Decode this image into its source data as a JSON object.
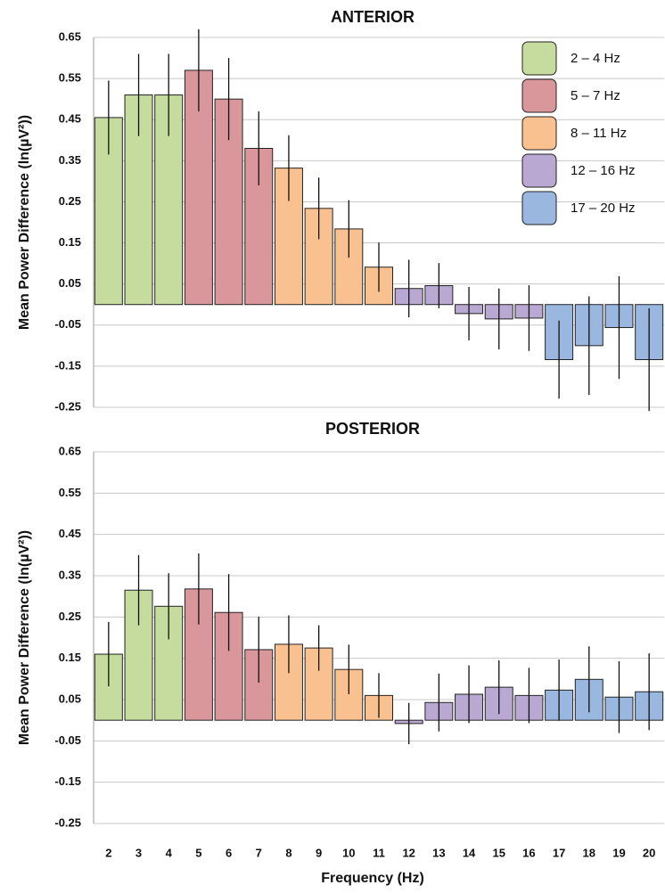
{
  "chart_data": [
    {
      "type": "bar",
      "title": "ANTERIOR",
      "y_label": "Mean Power Difference (ln(µV²))",
      "categories": [
        "2",
        "3",
        "4",
        "5",
        "6",
        "7",
        "8",
        "9",
        "10",
        "11",
        "12",
        "13",
        "14",
        "15",
        "16",
        "17",
        "18",
        "19",
        "20"
      ],
      "ylim": [
        -0.25,
        0.65
      ],
      "yticks": [
        0.65,
        0.55,
        0.45,
        0.35,
        0.25,
        0.15,
        0.05,
        -0.05,
        -0.15,
        -0.25
      ],
      "grid": true,
      "legend": "top-right",
      "series": [
        {
          "name": "2 – 4 Hz",
          "color": "#c6dc9f",
          "values": [
            0.455,
            0.51,
            0.51,
            null,
            null,
            null,
            null,
            null,
            null,
            null,
            null,
            null,
            null,
            null,
            null,
            null,
            null,
            null,
            null
          ],
          "errors": [
            0.09,
            0.1,
            0.1,
            null,
            null,
            null,
            null,
            null,
            null,
            null,
            null,
            null,
            null,
            null,
            null,
            null,
            null,
            null,
            null
          ]
        },
        {
          "name": "5 – 7 Hz",
          "color": "#d9969b",
          "values": [
            null,
            null,
            null,
            0.57,
            0.5,
            0.38,
            null,
            null,
            null,
            null,
            null,
            null,
            null,
            null,
            null,
            null,
            null,
            null,
            null
          ],
          "errors": [
            null,
            null,
            null,
            0.1,
            0.1,
            0.09,
            null,
            null,
            null,
            null,
            null,
            null,
            null,
            null,
            null,
            null,
            null,
            null,
            null
          ]
        },
        {
          "name": "8 – 11 Hz",
          "color": "#f9c190",
          "values": [
            null,
            null,
            null,
            null,
            null,
            null,
            0.332,
            0.234,
            0.184,
            0.091,
            null,
            null,
            null,
            null,
            null,
            null,
            null,
            null,
            null
          ],
          "errors": [
            null,
            null,
            null,
            null,
            null,
            null,
            0.08,
            0.075,
            0.07,
            0.06,
            null,
            null,
            null,
            null,
            null,
            null,
            null,
            null,
            null
          ]
        },
        {
          "name": "12 – 16 Hz",
          "color": "#b9a8d2",
          "values": [
            null,
            null,
            null,
            null,
            null,
            null,
            null,
            null,
            null,
            null,
            0.039,
            0.046,
            -0.022,
            -0.035,
            -0.033,
            null,
            null,
            null,
            null
          ],
          "errors": [
            null,
            null,
            null,
            null,
            null,
            null,
            null,
            null,
            null,
            null,
            0.07,
            0.055,
            0.065,
            0.074,
            0.08,
            null,
            null,
            null,
            null
          ]
        },
        {
          "name": "17 – 20 Hz",
          "color": "#99b7df",
          "values": [
            null,
            null,
            null,
            null,
            null,
            null,
            null,
            null,
            null,
            null,
            null,
            null,
            null,
            null,
            null,
            -0.134,
            -0.1,
            -0.056,
            -0.134
          ],
          "errors": [
            null,
            null,
            null,
            null,
            null,
            null,
            null,
            null,
            null,
            null,
            null,
            null,
            null,
            null,
            null,
            0.095,
            0.12,
            0.125,
            0.125
          ]
        }
      ]
    },
    {
      "type": "bar",
      "title": "POSTERIOR",
      "y_label": "Mean Power Difference (ln(µV²))",
      "x_label": "Frequency (Hz)",
      "categories": [
        "2",
        "3",
        "4",
        "5",
        "6",
        "7",
        "8",
        "9",
        "10",
        "11",
        "12",
        "13",
        "14",
        "15",
        "16",
        "17",
        "18",
        "19",
        "20"
      ],
      "ylim": [
        -0.25,
        0.65
      ],
      "yticks": [
        0.65,
        0.55,
        0.45,
        0.35,
        0.25,
        0.15,
        0.05,
        -0.05,
        -0.15,
        -0.25
      ],
      "grid": true,
      "series": [
        {
          "color": "#c6dc9f",
          "values": [
            0.16,
            0.315,
            0.276,
            null,
            null,
            null,
            null,
            null,
            null,
            null,
            null,
            null,
            null,
            null,
            null,
            null,
            null,
            null,
            null
          ],
          "errors": [
            0.078,
            0.085,
            0.08,
            null,
            null,
            null,
            null,
            null,
            null,
            null,
            null,
            null,
            null,
            null,
            null,
            null,
            null,
            null,
            null
          ]
        },
        {
          "color": "#d9969b",
          "values": [
            null,
            null,
            null,
            0.318,
            0.261,
            0.171,
            null,
            null,
            null,
            null,
            null,
            null,
            null,
            null,
            null,
            null,
            null,
            null,
            null
          ],
          "errors": [
            null,
            null,
            null,
            0.086,
            0.093,
            0.08,
            null,
            null,
            null,
            null,
            null,
            null,
            null,
            null,
            null,
            null,
            null,
            null,
            null
          ]
        },
        {
          "color": "#f9c190",
          "values": [
            null,
            null,
            null,
            null,
            null,
            null,
            0.184,
            0.175,
            0.123,
            0.06,
            null,
            null,
            null,
            null,
            null,
            null,
            null,
            null,
            null
          ],
          "errors": [
            null,
            null,
            null,
            null,
            null,
            null,
            0.07,
            0.055,
            0.06,
            0.054,
            null,
            null,
            null,
            null,
            null,
            null,
            null,
            null,
            null
          ]
        },
        {
          "color": "#b9a8d2",
          "values": [
            null,
            null,
            null,
            null,
            null,
            null,
            null,
            null,
            null,
            null,
            -0.008,
            0.043,
            0.063,
            0.08,
            0.06,
            null,
            null,
            null,
            null
          ],
          "errors": [
            null,
            null,
            null,
            null,
            null,
            null,
            null,
            null,
            null,
            null,
            0.05,
            0.07,
            0.07,
            0.065,
            0.067,
            null,
            null,
            null,
            null
          ]
        },
        {
          "color": "#99b7df",
          "values": [
            null,
            null,
            null,
            null,
            null,
            null,
            null,
            null,
            null,
            null,
            null,
            null,
            null,
            null,
            null,
            0.073,
            0.099,
            0.056,
            0.069
          ],
          "errors": [
            null,
            null,
            null,
            null,
            null,
            null,
            null,
            null,
            null,
            null,
            null,
            null,
            null,
            null,
            null,
            0.074,
            0.08,
            0.087,
            0.093
          ]
        }
      ]
    }
  ]
}
